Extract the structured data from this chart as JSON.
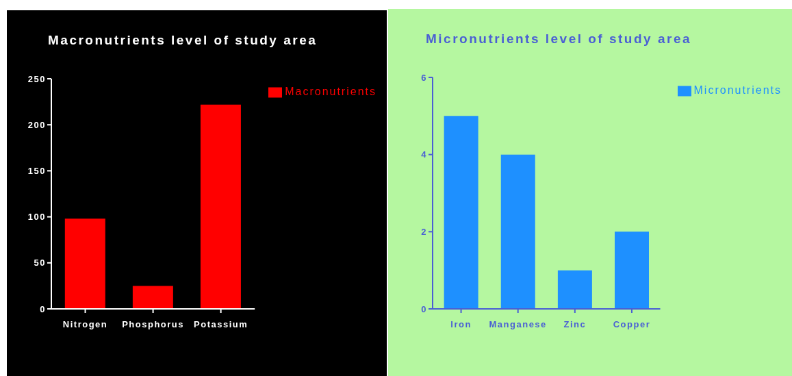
{
  "chart_data": [
    {
      "type": "bar",
      "title": "Macronutrients level of study area",
      "categories": [
        "Nitrogen",
        "Phosphorus",
        "Potassium"
      ],
      "series": [
        {
          "name": "Macronutrients",
          "color": "#ff0000",
          "values": [
            98,
            25,
            222
          ]
        }
      ],
      "ylim": [
        0,
        250
      ],
      "yticks": [
        0,
        50,
        100,
        150,
        200,
        250
      ],
      "grid": false,
      "legend": "top right"
    },
    {
      "type": "bar",
      "title": "Micronutrients level of study area",
      "categories": [
        "Iron",
        "Manganese",
        "Zinc",
        "Copper"
      ],
      "series": [
        {
          "name": "Micronutrients",
          "color": "#1e90ff",
          "values": [
            5,
            4,
            1,
            2
          ]
        }
      ],
      "ylim": [
        0,
        6
      ],
      "yticks": [
        0,
        2,
        4,
        6
      ],
      "grid": false,
      "legend": "top right"
    }
  ]
}
